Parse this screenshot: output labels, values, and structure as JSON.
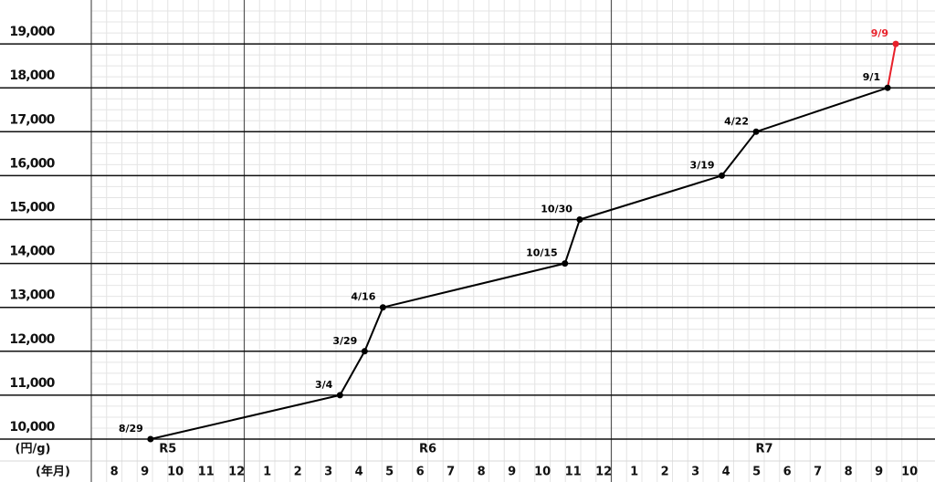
{
  "chart_data": {
    "type": "line",
    "y_unit_label": "(円/g)",
    "x_unit_label": "(年月)",
    "years": [
      {
        "name": "R5",
        "months": [
          8,
          9,
          10,
          11,
          12
        ]
      },
      {
        "name": "R6",
        "months": [
          1,
          2,
          3,
          4,
          5,
          6,
          7,
          8,
          9,
          10,
          11,
          12
        ]
      },
      {
        "name": "R7",
        "months": [
          1,
          2,
          3,
          4,
          5,
          6,
          7,
          8,
          9,
          10
        ]
      }
    ],
    "color": "#000000",
    "points": [
      {
        "year": "R5",
        "date": "8/29",
        "value": 10000
      },
      {
        "year": "R6",
        "date": "3/4",
        "value": 11000
      },
      {
        "year": "R6",
        "date": "3/29",
        "value": 12000
      },
      {
        "year": "R6",
        "date": "4/16",
        "value": 13000
      },
      {
        "year": "R6",
        "date": "10/15",
        "value": 14000
      },
      {
        "year": "R6",
        "date": "10/30",
        "value": 15000
      },
      {
        "year": "R7",
        "date": "3/19",
        "value": 16000
      },
      {
        "year": "R7",
        "date": "4/22",
        "value": 17000
      },
      {
        "year": "R7",
        "date": "9/1",
        "value": 18000
      },
      {
        "year": "R7",
        "date": "9/9",
        "value": 19000,
        "color": "#e8202a"
      }
    ],
    "ylim": [
      10000,
      20000
    ],
    "yticks": [
      {
        "value": 10000,
        "label": "10,000"
      },
      {
        "value": 11000,
        "label": "11,000"
      },
      {
        "value": 12000,
        "label": "12,000"
      },
      {
        "value": 13000,
        "label": "13,000"
      },
      {
        "value": 14000,
        "label": "14,000"
      },
      {
        "value": 15000,
        "label": "15,000"
      },
      {
        "value": 16000,
        "label": "16,000"
      },
      {
        "value": 17000,
        "label": "17,000"
      },
      {
        "value": 18000,
        "label": "18,000"
      },
      {
        "value": 19000,
        "label": "19,000"
      }
    ]
  }
}
